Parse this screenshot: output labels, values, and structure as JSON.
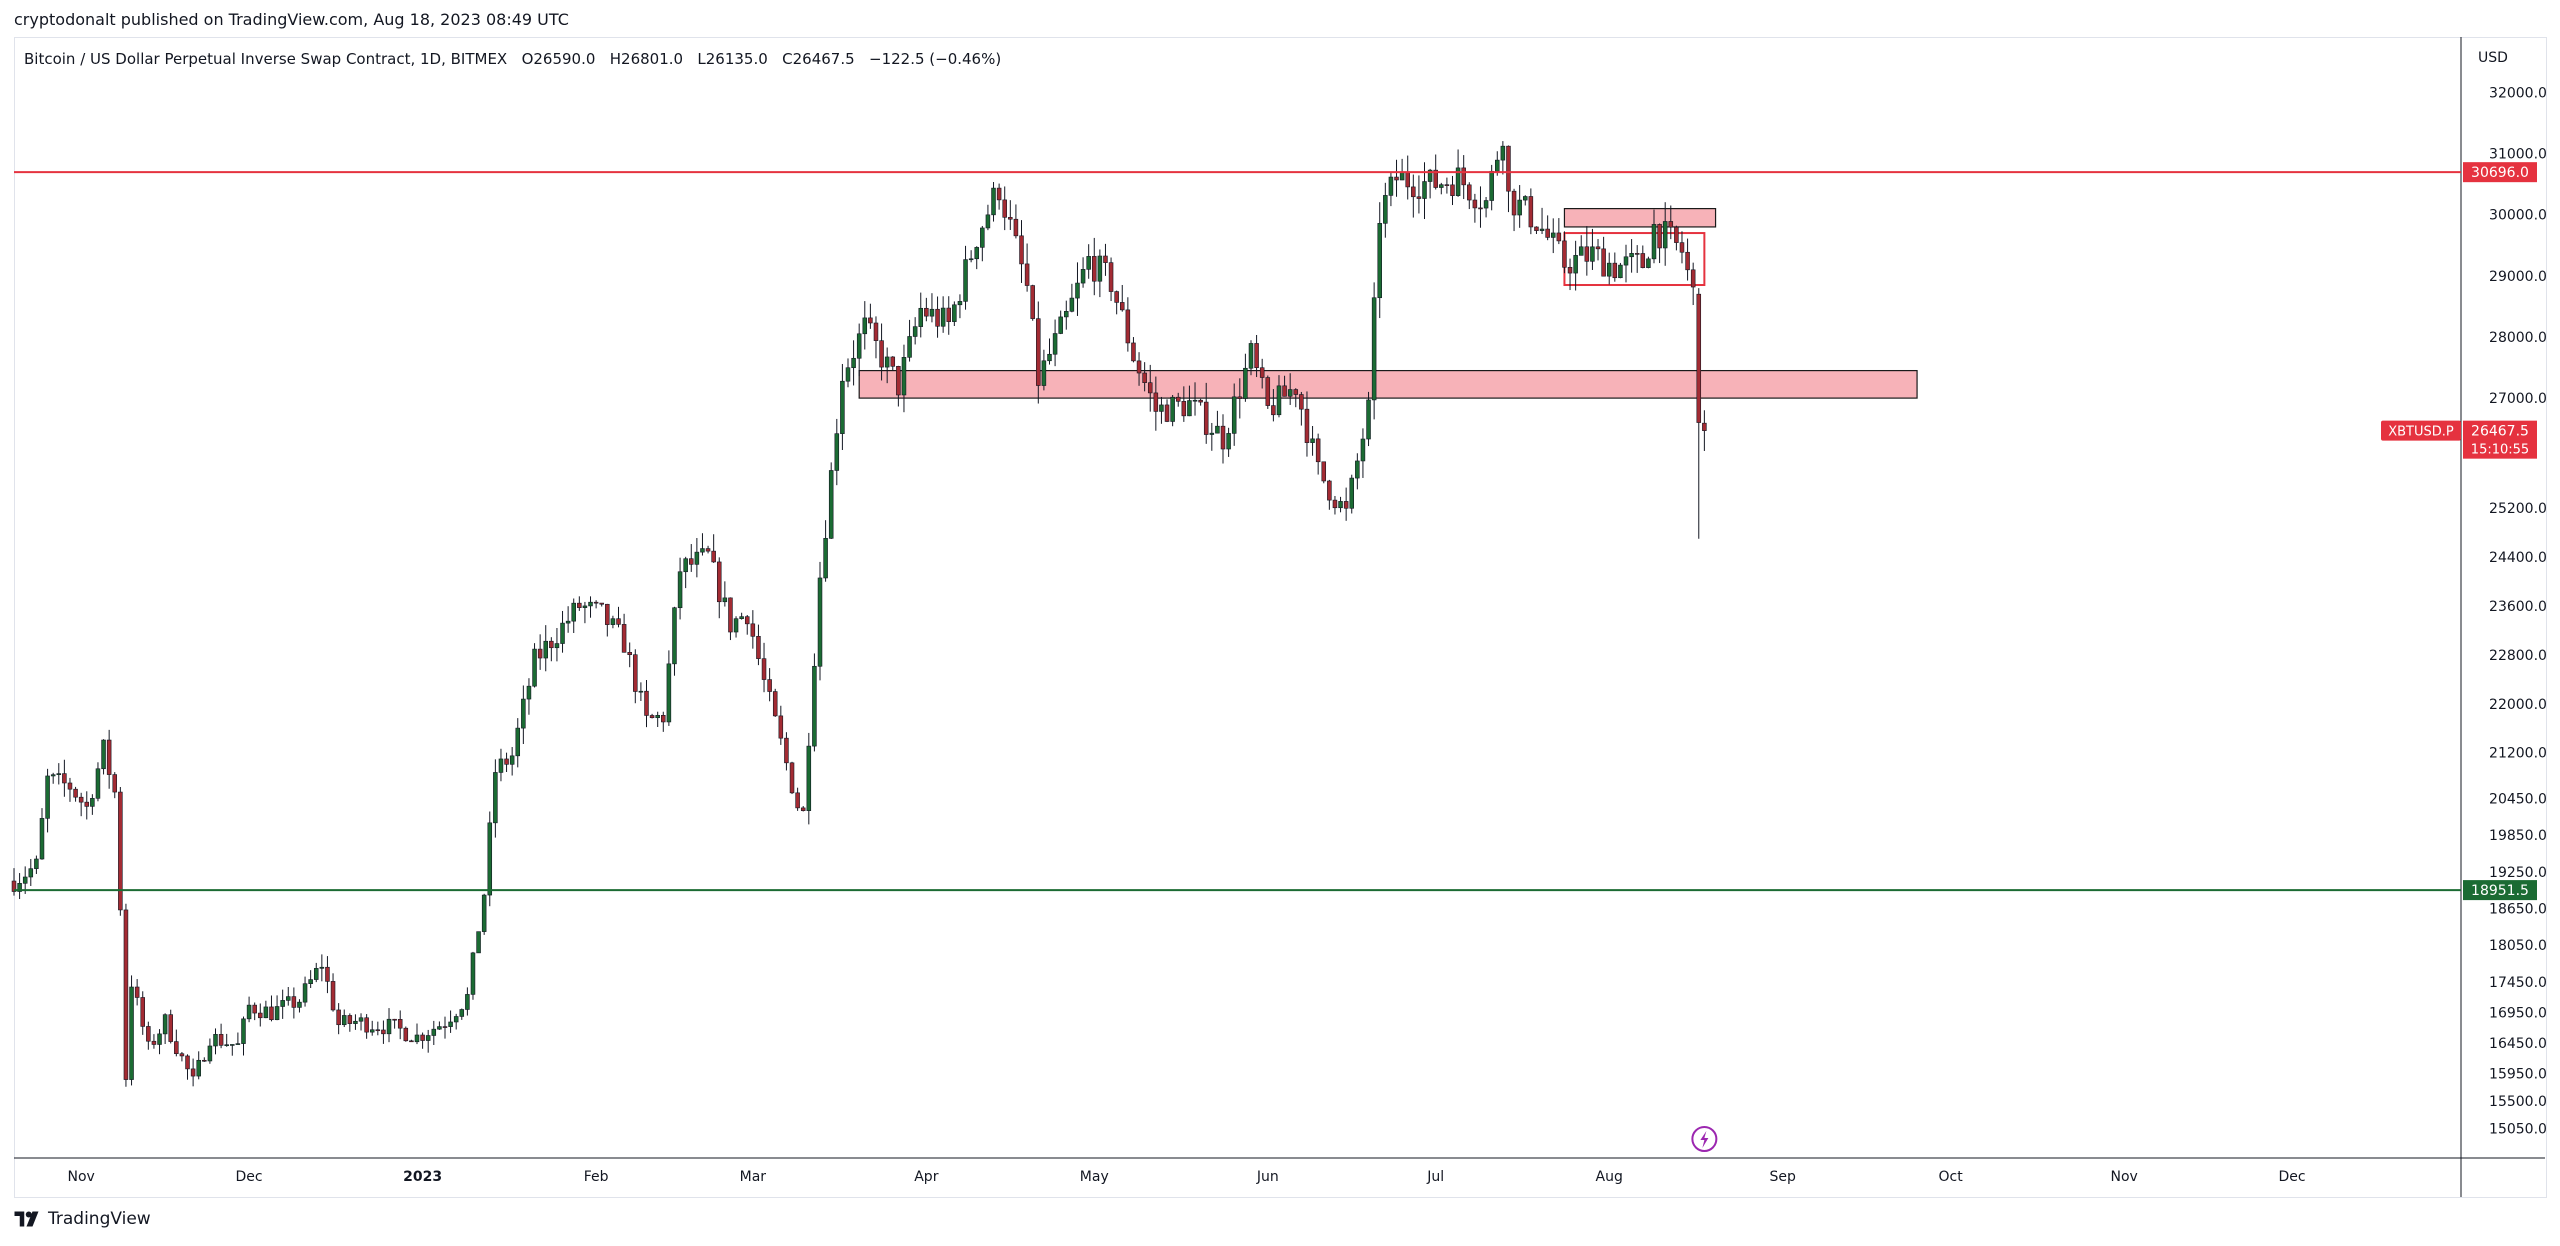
{
  "header": {
    "published_text": "cryptodonalt published on TradingView.com, Aug 18, 2023 08:49 UTC"
  },
  "symbol": {
    "title": "Bitcoin / US Dollar Perpetual Inverse Swap Contract, 1D, BITMEX",
    "open": "O26590.0",
    "high": "H26801.0",
    "low": "L26135.0",
    "close": "C26467.5",
    "change": "−122.5 (−0.46%)"
  },
  "currency": "USD",
  "footer": {
    "brand": "TradingView"
  },
  "chart_data": {
    "type": "candlestick",
    "symbol": "XBTUSD.P",
    "timeframe": "1D",
    "x_range": [
      "2022-10-20",
      "2023-12-31"
    ],
    "y_range": [
      14700,
      32400
    ],
    "y_ticks": [
      "32000.0",
      "31000.0",
      "30000.0",
      "29000.0",
      "28000.0",
      "27000.0",
      "25200.0",
      "24400.0",
      "23600.0",
      "22800.0",
      "22000.0",
      "21200.0",
      "20450.0",
      "19850.0",
      "19250.0",
      "18650.0",
      "18050.0",
      "17450.0",
      "16950.0",
      "16450.0",
      "15950.0",
      "15500.0",
      "15050.0"
    ],
    "x_ticks": [
      {
        "label": "Nov",
        "date": "2022-11-01",
        "bold": false
      },
      {
        "label": "Dec",
        "date": "2022-12-01",
        "bold": false
      },
      {
        "label": "2023",
        "date": "2023-01-01",
        "bold": true
      },
      {
        "label": "Feb",
        "date": "2023-02-01",
        "bold": false
      },
      {
        "label": "Mar",
        "date": "2023-03-01",
        "bold": false
      },
      {
        "label": "Apr",
        "date": "2023-04-01",
        "bold": false
      },
      {
        "label": "May",
        "date": "2023-05-01",
        "bold": false
      },
      {
        "label": "Jun",
        "date": "2023-06-01",
        "bold": false
      },
      {
        "label": "Jul",
        "date": "2023-07-01",
        "bold": false
      },
      {
        "label": "Aug",
        "date": "2023-08-01",
        "bold": false
      },
      {
        "label": "Sep",
        "date": "2023-09-01",
        "bold": false
      },
      {
        "label": "Oct",
        "date": "2023-10-01",
        "bold": false
      },
      {
        "label": "Nov",
        "date": "2023-11-01",
        "bold": false
      },
      {
        "label": "Dec",
        "date": "2023-12-01",
        "bold": false
      }
    ],
    "up_color": "#1b6b33",
    "down_color": "#a32b33",
    "series_closes": [
      {
        "date": "2022-10-20",
        "close": 19100
      },
      {
        "date": "2022-10-24",
        "close": 19350
      },
      {
        "date": "2022-10-26",
        "close": 20750
      },
      {
        "date": "2022-10-30",
        "close": 20650
      },
      {
        "date": "2022-11-02",
        "close": 20300
      },
      {
        "date": "2022-11-05",
        "close": 21250
      },
      {
        "date": "2022-11-07",
        "close": 20550
      },
      {
        "date": "2022-11-08",
        "close": 18700
      },
      {
        "date": "2022-11-09",
        "close": 15900
      },
      {
        "date": "2022-11-10",
        "close": 17450
      },
      {
        "date": "2022-11-13",
        "close": 16350
      },
      {
        "date": "2022-11-16",
        "close": 16800
      },
      {
        "date": "2022-11-21",
        "close": 15800
      },
      {
        "date": "2022-11-24",
        "close": 16550
      },
      {
        "date": "2022-11-29",
        "close": 16400
      },
      {
        "date": "2022-12-01",
        "close": 17050
      },
      {
        "date": "2022-12-05",
        "close": 16950
      },
      {
        "date": "2022-12-10",
        "close": 17150
      },
      {
        "date": "2022-12-14",
        "close": 17750
      },
      {
        "date": "2022-12-17",
        "close": 16750
      },
      {
        "date": "2022-12-20",
        "close": 16800
      },
      {
        "date": "2022-12-27",
        "close": 16700
      },
      {
        "date": "2022-12-31",
        "close": 16550
      },
      {
        "date": "2023-01-05",
        "close": 16800
      },
      {
        "date": "2023-01-09",
        "close": 17200
      },
      {
        "date": "2023-01-12",
        "close": 18900
      },
      {
        "date": "2023-01-14",
        "close": 20900
      },
      {
        "date": "2023-01-17",
        "close": 21150
      },
      {
        "date": "2023-01-21",
        "close": 22700
      },
      {
        "date": "2023-01-29",
        "close": 23600
      },
      {
        "date": "2023-02-02",
        "close": 23450
      },
      {
        "date": "2023-02-06",
        "close": 23000
      },
      {
        "date": "2023-02-10",
        "close": 21700
      },
      {
        "date": "2023-02-13",
        "close": 21800
      },
      {
        "date": "2023-02-16",
        "close": 24200
      },
      {
        "date": "2023-02-21",
        "close": 24400
      },
      {
        "date": "2023-02-25",
        "close": 23300
      },
      {
        "date": "2023-02-28",
        "close": 23500
      },
      {
        "date": "2023-03-03",
        "close": 22350
      },
      {
        "date": "2023-03-09",
        "close": 20350
      },
      {
        "date": "2023-03-10",
        "close": 20200
      },
      {
        "date": "2023-03-13",
        "close": 24100
      },
      {
        "date": "2023-03-17",
        "close": 27400
      },
      {
        "date": "2023-03-21",
        "close": 28150
      },
      {
        "date": "2023-03-27",
        "close": 27200
      },
      {
        "date": "2023-03-31",
        "close": 28450
      },
      {
        "date": "2023-04-05",
        "close": 28200
      },
      {
        "date": "2023-04-10",
        "close": 29650
      },
      {
        "date": "2023-04-14",
        "close": 30450
      },
      {
        "date": "2023-04-19",
        "close": 28800
      },
      {
        "date": "2023-04-21",
        "close": 27300
      },
      {
        "date": "2023-04-26",
        "close": 28300
      },
      {
        "date": "2023-04-30",
        "close": 29250
      },
      {
        "date": "2023-05-04",
        "close": 28900
      },
      {
        "date": "2023-05-08",
        "close": 27700
      },
      {
        "date": "2023-05-12",
        "close": 26800
      },
      {
        "date": "2023-05-18",
        "close": 26900
      },
      {
        "date": "2023-05-24",
        "close": 26350
      },
      {
        "date": "2023-05-29",
        "close": 27700
      },
      {
        "date": "2023-06-01",
        "close": 26800
      },
      {
        "date": "2023-06-06",
        "close": 27200
      },
      {
        "date": "2023-06-10",
        "close": 25800
      },
      {
        "date": "2023-06-15",
        "close": 25100
      },
      {
        "date": "2023-06-19",
        "close": 26800
      },
      {
        "date": "2023-06-21",
        "close": 30000
      },
      {
        "date": "2023-06-24",
        "close": 30600
      },
      {
        "date": "2023-06-30",
        "close": 30500
      },
      {
        "date": "2023-07-05",
        "close": 30600
      },
      {
        "date": "2023-07-10",
        "close": 30200
      },
      {
        "date": "2023-07-13",
        "close": 31400
      },
      {
        "date": "2023-07-14",
        "close": 30300
      },
      {
        "date": "2023-07-19",
        "close": 29900
      },
      {
        "date": "2023-07-24",
        "close": 29200
      },
      {
        "date": "2023-07-29",
        "close": 29350
      },
      {
        "date": "2023-08-02",
        "close": 29150
      },
      {
        "date": "2023-08-07",
        "close": 29200
      },
      {
        "date": "2023-08-09",
        "close": 29800
      },
      {
        "date": "2023-08-14",
        "close": 29400
      },
      {
        "date": "2023-08-16",
        "close": 28700
      },
      {
        "date": "2023-08-17",
        "close": 26600
      },
      {
        "date": "2023-08-18",
        "close": 26467.5
      }
    ],
    "last_candle": {
      "date": "2023-08-18",
      "open": 26590.0,
      "high": 26801.0,
      "low": 26135.0,
      "close": 26467.5
    },
    "big_drop_candle": {
      "date": "2023-08-17",
      "open": 28700,
      "high": 28800,
      "low": 24700,
      "close": 26600
    },
    "horizontal_lines": [
      {
        "price": 30696.0,
        "label": "30696.0",
        "color": "#e5323f"
      },
      {
        "price": 18951.5,
        "label": "18951.5",
        "color": "#1b6b33"
      }
    ],
    "zones": [
      {
        "from": "2023-03-20",
        "to": "2023-09-25",
        "top": 27450,
        "bottom": 27000,
        "fill": "#f7b2b8",
        "stroke": "#1a1a1a"
      },
      {
        "from": "2023-07-24",
        "to": "2023-08-20",
        "top": 30100,
        "bottom": 29800,
        "fill": "#f7b2b8",
        "stroke": "#1a1a1a"
      },
      {
        "from": "2023-07-24",
        "to": "2023-08-18",
        "top": 29700,
        "bottom": 28850,
        "fill": "none",
        "stroke": "#e5323f"
      }
    ],
    "price_tag": {
      "symbol": "XBTUSD.P",
      "price": "26467.5",
      "countdown": "15:10:55",
      "color": "#e5323f"
    }
  }
}
